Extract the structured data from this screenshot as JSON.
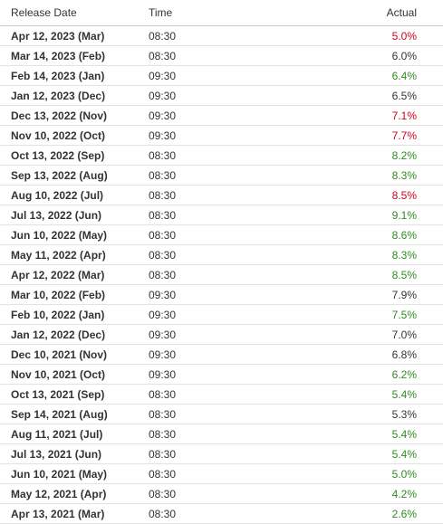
{
  "columns": {
    "release_date": "Release Date",
    "time": "Time",
    "actual": "Actual"
  },
  "colors": {
    "up": "#2e8b1f",
    "down": "#d0021b",
    "neutral": "#333333"
  },
  "rows": [
    {
      "date": "Apr 12, 2023 (Mar)",
      "time": "08:30",
      "actual": "5.0%",
      "trend": "down"
    },
    {
      "date": "Mar 14, 2023 (Feb)",
      "time": "08:30",
      "actual": "6.0%",
      "trend": "neutral"
    },
    {
      "date": "Feb 14, 2023 (Jan)",
      "time": "09:30",
      "actual": "6.4%",
      "trend": "up"
    },
    {
      "date": "Jan 12, 2023 (Dec)",
      "time": "09:30",
      "actual": "6.5%",
      "trend": "neutral"
    },
    {
      "date": "Dec 13, 2022 (Nov)",
      "time": "09:30",
      "actual": "7.1%",
      "trend": "down"
    },
    {
      "date": "Nov 10, 2022 (Oct)",
      "time": "09:30",
      "actual": "7.7%",
      "trend": "down"
    },
    {
      "date": "Oct 13, 2022 (Sep)",
      "time": "08:30",
      "actual": "8.2%",
      "trend": "up"
    },
    {
      "date": "Sep 13, 2022 (Aug)",
      "time": "08:30",
      "actual": "8.3%",
      "trend": "up"
    },
    {
      "date": "Aug 10, 2022 (Jul)",
      "time": "08:30",
      "actual": "8.5%",
      "trend": "down"
    },
    {
      "date": "Jul 13, 2022 (Jun)",
      "time": "08:30",
      "actual": "9.1%",
      "trend": "up"
    },
    {
      "date": "Jun 10, 2022 (May)",
      "time": "08:30",
      "actual": "8.6%",
      "trend": "up"
    },
    {
      "date": "May 11, 2022 (Apr)",
      "time": "08:30",
      "actual": "8.3%",
      "trend": "up"
    },
    {
      "date": "Apr 12, 2022 (Mar)",
      "time": "08:30",
      "actual": "8.5%",
      "trend": "up"
    },
    {
      "date": "Mar 10, 2022 (Feb)",
      "time": "09:30",
      "actual": "7.9%",
      "trend": "neutral"
    },
    {
      "date": "Feb 10, 2022 (Jan)",
      "time": "09:30",
      "actual": "7.5%",
      "trend": "up"
    },
    {
      "date": "Jan 12, 2022 (Dec)",
      "time": "09:30",
      "actual": "7.0%",
      "trend": "neutral"
    },
    {
      "date": "Dec 10, 2021 (Nov)",
      "time": "09:30",
      "actual": "6.8%",
      "trend": "neutral"
    },
    {
      "date": "Nov 10, 2021 (Oct)",
      "time": "09:30",
      "actual": "6.2%",
      "trend": "up"
    },
    {
      "date": "Oct 13, 2021 (Sep)",
      "time": "08:30",
      "actual": "5.4%",
      "trend": "up"
    },
    {
      "date": "Sep 14, 2021 (Aug)",
      "time": "08:30",
      "actual": "5.3%",
      "trend": "neutral"
    },
    {
      "date": "Aug 11, 2021 (Jul)",
      "time": "08:30",
      "actual": "5.4%",
      "trend": "up"
    },
    {
      "date": "Jul 13, 2021 (Jun)",
      "time": "08:30",
      "actual": "5.4%",
      "trend": "up"
    },
    {
      "date": "Jun 10, 2021 (May)",
      "time": "08:30",
      "actual": "5.0%",
      "trend": "up"
    },
    {
      "date": "May 12, 2021 (Apr)",
      "time": "08:30",
      "actual": "4.2%",
      "trend": "up"
    },
    {
      "date": "Apr 13, 2021 (Mar)",
      "time": "08:30",
      "actual": "2.6%",
      "trend": "up"
    }
  ]
}
